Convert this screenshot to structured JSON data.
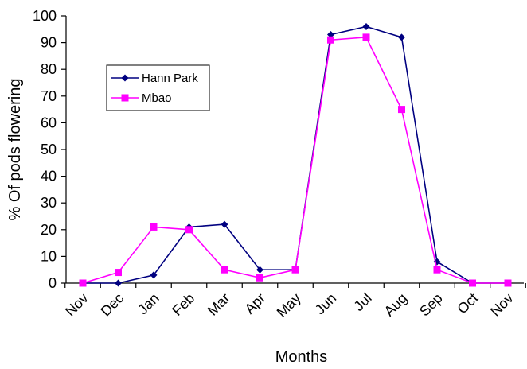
{
  "chart_data": {
    "type": "line",
    "title": "",
    "xlabel": "Months",
    "ylabel": "% Of pods flowering",
    "ylim": [
      0,
      100
    ],
    "yticks": [
      0,
      10,
      20,
      30,
      40,
      50,
      60,
      70,
      80,
      90,
      100
    ],
    "grid": false,
    "legend_position": "upper-left",
    "categories": [
      "Nov",
      "Dec",
      "Jan",
      "Feb",
      "Mar",
      "Apr",
      "May",
      "Jun",
      "Jul",
      "Aug",
      "Sep",
      "Oct",
      "Nov"
    ],
    "series": [
      {
        "name": "Hann Park",
        "color": "#000080",
        "marker": "diamond",
        "values": [
          0,
          0,
          3,
          21,
          22,
          5,
          5,
          93,
          96,
          92,
          8,
          0,
          0
        ]
      },
      {
        "name": "Mbao",
        "color": "#ff00ff",
        "marker": "square",
        "values": [
          0,
          4,
          21,
          20,
          5,
          2,
          5,
          91,
          92,
          65,
          5,
          0,
          0
        ]
      }
    ]
  }
}
